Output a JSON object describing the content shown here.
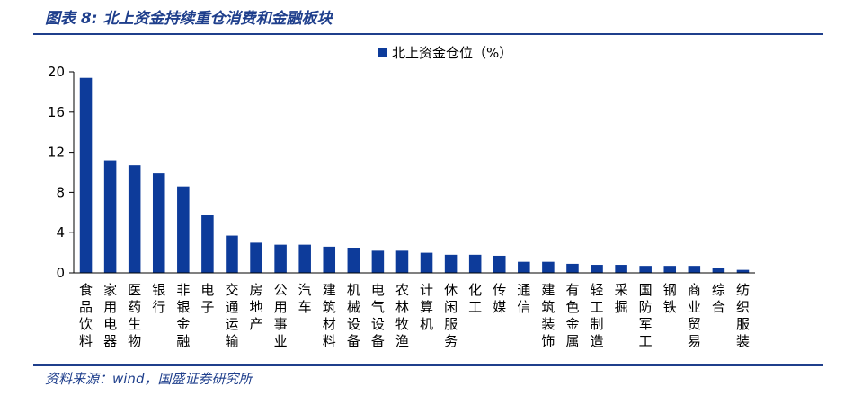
{
  "figure": {
    "title": "图表 8:  北上资金持续重仓消费和金融板块",
    "source": "资料来源：wind，国盛证券研究所"
  },
  "colors": {
    "bar": "#0d3b9a",
    "accent": "#1f3f8c",
    "axis": "#000000"
  },
  "chart_data": {
    "type": "bar",
    "legend": {
      "position": "top-center"
    },
    "grid": false,
    "ylim": [
      0,
      20
    ],
    "yticks": [
      0,
      4,
      8,
      12,
      16,
      20
    ],
    "categories": [
      "食品饮料",
      "家用电器",
      "医药生物",
      "银行",
      "非银金融",
      "电子",
      "交通运输",
      "房地产",
      "公用事业",
      "汽车",
      "建筑材料",
      "机械设备",
      "电气设备",
      "农林牧渔",
      "计算机",
      "休闲服务",
      "化工",
      "传媒",
      "通信",
      "建筑装饰",
      "有色金属",
      "轻工制造",
      "采掘",
      "国防军工",
      "钢铁",
      "商业贸易",
      "综合",
      "纺织服装"
    ],
    "series": [
      {
        "name": "北上资金仓位（%）",
        "values": [
          19.4,
          11.2,
          10.7,
          9.9,
          8.6,
          5.8,
          3.7,
          3.0,
          2.8,
          2.8,
          2.6,
          2.5,
          2.2,
          2.2,
          2.0,
          1.8,
          1.8,
          1.7,
          1.1,
          1.1,
          0.9,
          0.8,
          0.8,
          0.7,
          0.7,
          0.7,
          0.5,
          0.3
        ]
      }
    ]
  }
}
